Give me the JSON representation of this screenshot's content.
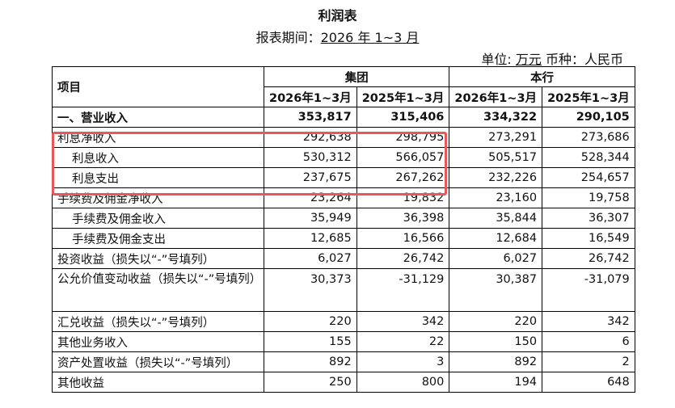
{
  "doc": {
    "title": "利润表",
    "period_label": "报表期间：",
    "period_value": "2026 年 1~3 月",
    "unit_label": "单位:",
    "unit_value": "万元",
    "currency_label": "币种：人民币"
  },
  "table": {
    "header": {
      "item": "项目",
      "group": "集团",
      "bank": "本行",
      "periods": [
        "2026年1~3月",
        "2025年1~3月",
        "2026年1~3月",
        "2025年1~3月"
      ]
    },
    "rows": [
      {
        "label": "一、营业收入",
        "values": [
          "353,817",
          "315,406",
          "334,322",
          "290,105"
        ]
      },
      {
        "label": "利息净收入",
        "values": [
          "292,638",
          "298,795",
          "273,291",
          "273,686"
        ]
      },
      {
        "label": "利息收入",
        "values": [
          "530,312",
          "566,057",
          "505,517",
          "528,344"
        ]
      },
      {
        "label": "利息支出",
        "values": [
          "237,675",
          "267,262",
          "232,226",
          "254,657"
        ]
      },
      {
        "label": "手续费及佣金净收入",
        "values": [
          "23,264",
          "19,832",
          "23,160",
          "19,758"
        ]
      },
      {
        "label": "手续费及佣金收入",
        "values": [
          "35,949",
          "36,398",
          "35,844",
          "36,307"
        ]
      },
      {
        "label": "手续费及佣金支出",
        "values": [
          "12,685",
          "16,566",
          "12,684",
          "16,549"
        ]
      },
      {
        "label": "投资收益（损失以“-”号填列）",
        "values": [
          "6,027",
          "26,742",
          "6,027",
          "26,742"
        ]
      },
      {
        "label": "公允价值变动收益（损失以“-”号填列）",
        "values": [
          "30,373",
          "-31,129",
          "30,387",
          "-31,079"
        ]
      },
      {
        "label": "汇兑收益（损失以“-”号填列）",
        "values": [
          "220",
          "342",
          "220",
          "342"
        ]
      },
      {
        "label": "其他业务收入",
        "values": [
          "155",
          "22",
          "150",
          "6"
        ]
      },
      {
        "label": "资产处置收益（损失以“-”号填列）",
        "values": [
          "892",
          "3",
          "892",
          "2"
        ]
      },
      {
        "label": "其他收益",
        "values": [
          "250",
          "800",
          "194",
          "648"
        ]
      }
    ]
  },
  "colors": {
    "highlight_border": "#e9575d"
  }
}
